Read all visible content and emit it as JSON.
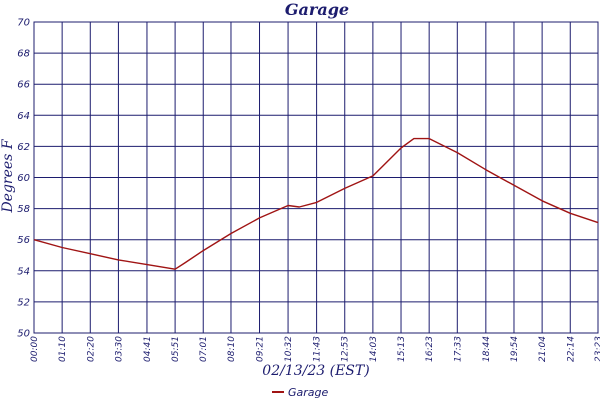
{
  "chart_data": {
    "type": "line",
    "title": "Garage",
    "xlabel": "02/13/23 (EST)",
    "ylabel": "Degrees F",
    "ylim": [
      50,
      70
    ],
    "yticks": [
      "50",
      "52",
      "54",
      "56",
      "58",
      "60",
      "62",
      "64",
      "66",
      "68",
      "70"
    ],
    "xticks": [
      "00:00",
      "01:10",
      "02:20",
      "03:30",
      "04:41",
      "05:51",
      "07:01",
      "08:10",
      "09:21",
      "10:32",
      "11:43",
      "12:53",
      "14:03",
      "15:13",
      "16:23",
      "17:33",
      "18:44",
      "19:54",
      "21:04",
      "22:14",
      "23:23"
    ],
    "grid": true,
    "legend_position": "bottom-center",
    "series": [
      {
        "name": "Garage",
        "color": "#a01414",
        "x": [
          "00:00",
          "01:10",
          "02:20",
          "03:30",
          "04:41",
          "05:51",
          "06:15",
          "07:01",
          "08:10",
          "09:21",
          "10:32",
          "11:00",
          "11:43",
          "12:53",
          "14:03",
          "15:13",
          "15:45",
          "16:23",
          "17:33",
          "18:44",
          "19:54",
          "21:04",
          "22:14",
          "23:23"
        ],
        "values": [
          56.0,
          55.5,
          55.1,
          54.7,
          54.4,
          54.1,
          54.5,
          55.3,
          56.4,
          57.4,
          58.2,
          58.1,
          58.4,
          59.3,
          60.1,
          61.9,
          62.5,
          62.5,
          61.6,
          60.5,
          59.5,
          58.5,
          57.7,
          57.1
        ]
      }
    ]
  }
}
